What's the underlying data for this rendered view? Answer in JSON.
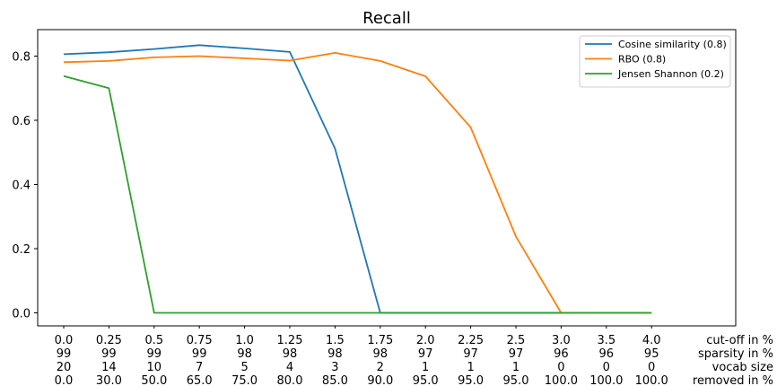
{
  "chart_data": {
    "type": "line",
    "title": "Recall",
    "xlabel": "",
    "ylabel": "",
    "ylim": [
      -0.04,
      0.88
    ],
    "yticks": [
      0.0,
      0.2,
      0.4,
      0.6,
      0.8
    ],
    "ytick_labels": [
      "0.0",
      "0.2",
      "0.4",
      "0.6",
      "0.8"
    ],
    "grid": false,
    "legend_position": "top-right",
    "x_row_titles": [
      "cut-off in %",
      "sparsity in %",
      "vocab size",
      "removed in %"
    ],
    "x_tick_rows": [
      [
        "0.0",
        "0.25",
        "0.5",
        "0.75",
        "1.0",
        "1.25",
        "1.5",
        "1.75",
        "2.0",
        "2.25",
        "2.5",
        "3.0",
        "3.5",
        "4.0"
      ],
      [
        "99",
        "99",
        "99",
        "99",
        "98",
        "98",
        "98",
        "98",
        "97",
        "97",
        "97",
        "96",
        "96",
        "95"
      ],
      [
        "20",
        "14",
        "10",
        "7",
        "5",
        "4",
        "3",
        "2",
        "1",
        "1",
        "1",
        "0",
        "0",
        "0"
      ],
      [
        "0.0",
        "30.0",
        "50.0",
        "65.0",
        "75.0",
        "80.0",
        "85.0",
        "90.0",
        "95.0",
        "95.0",
        "95.0",
        "100.0",
        "100.0",
        "100.0"
      ]
    ],
    "series": [
      {
        "name": "Cosine similarity (0.8)",
        "color": "#1f77b4",
        "values": [
          0.806,
          0.812,
          0.822,
          0.834,
          0.824,
          0.813,
          0.512,
          0.0,
          0.0,
          0.0,
          0.0,
          0.0,
          0.0,
          0.0
        ]
      },
      {
        "name": "RBO (0.8)",
        "color": "#ff7f0e",
        "values": [
          0.781,
          0.785,
          0.796,
          0.8,
          0.793,
          0.786,
          0.81,
          0.785,
          0.737,
          0.578,
          0.238,
          0.0,
          0.0,
          0.0
        ]
      },
      {
        "name": "Jensen Shannon (0.2)",
        "color": "#2ca02c",
        "values": [
          0.738,
          0.7,
          0.0,
          0.0,
          0.0,
          0.0,
          0.0,
          0.0,
          0.0,
          0.0,
          0.0,
          0.0,
          0.0,
          0.0
        ]
      }
    ]
  }
}
